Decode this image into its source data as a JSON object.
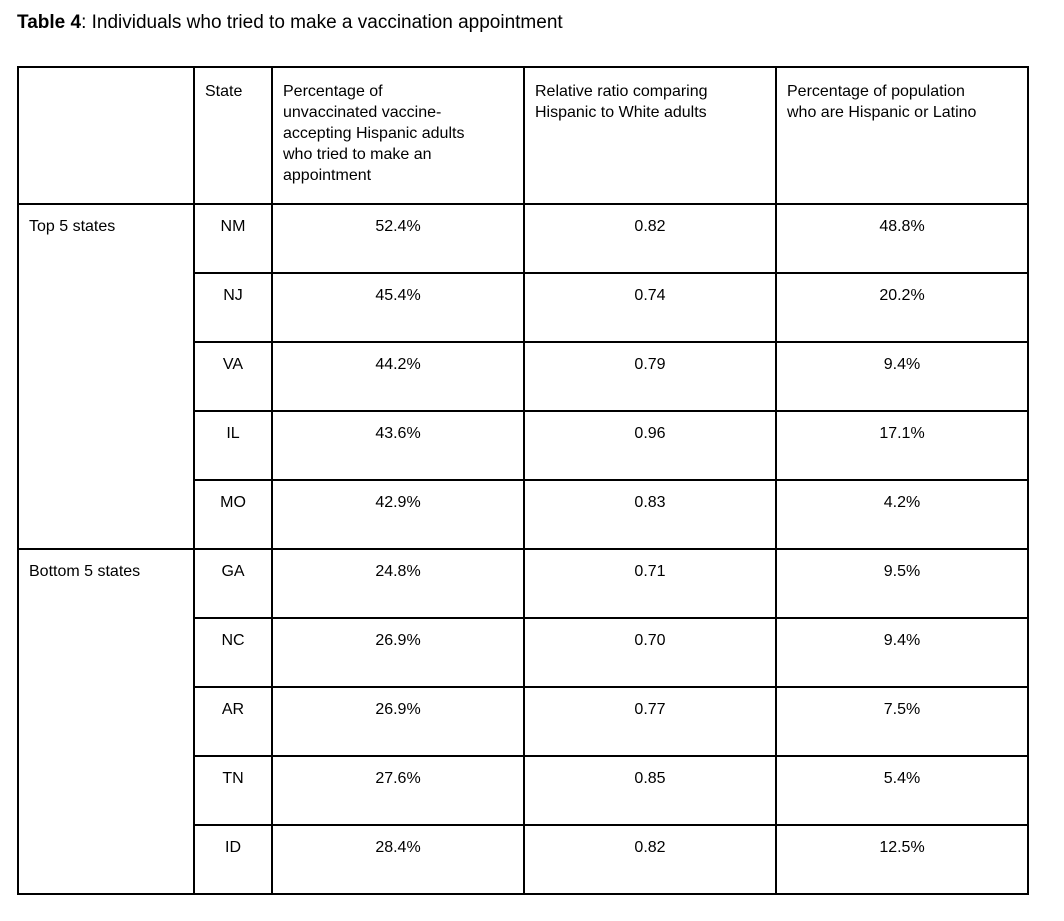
{
  "title": {
    "bold": "Table 4",
    "rest": ": Individuals who tried to make a vaccination appointment"
  },
  "table": {
    "headers": {
      "group": "",
      "state": "State",
      "pct": "Percentage of\nunvaccinated vaccine-\naccepting Hispanic adults\nwho tried to make an\nappointment",
      "ratio": "Relative ratio comparing\nHispanic to White adults",
      "pop": "Percentage of population\nwho are Hispanic or Latino"
    },
    "groups": [
      {
        "label": "Top 5 states",
        "rows": [
          {
            "state": "NM",
            "pct": "52.4%",
            "ratio": "0.82",
            "pop": "48.8%"
          },
          {
            "state": "NJ",
            "pct": "45.4%",
            "ratio": "0.74",
            "pop": "20.2%"
          },
          {
            "state": "VA",
            "pct": "44.2%",
            "ratio": "0.79",
            "pop": "9.4%"
          },
          {
            "state": "IL",
            "pct": "43.6%",
            "ratio": "0.96",
            "pop": "17.1%"
          },
          {
            "state": "MO",
            "pct": "42.9%",
            "ratio": "0.83",
            "pop": "4.2%"
          }
        ]
      },
      {
        "label": "Bottom 5 states",
        "rows": [
          {
            "state": "GA",
            "pct": "24.8%",
            "ratio": "0.71",
            "pop": "9.5%"
          },
          {
            "state": "NC",
            "pct": "26.9%",
            "ratio": "0.70",
            "pop": "9.4%"
          },
          {
            "state": "AR",
            "pct": "26.9%",
            "ratio": "0.77",
            "pop": "7.5%"
          },
          {
            "state": "TN",
            "pct": "27.6%",
            "ratio": "0.85",
            "pop": "5.4%"
          },
          {
            "state": "ID",
            "pct": "28.4%",
            "ratio": "0.82",
            "pop": "12.5%"
          }
        ]
      }
    ]
  }
}
